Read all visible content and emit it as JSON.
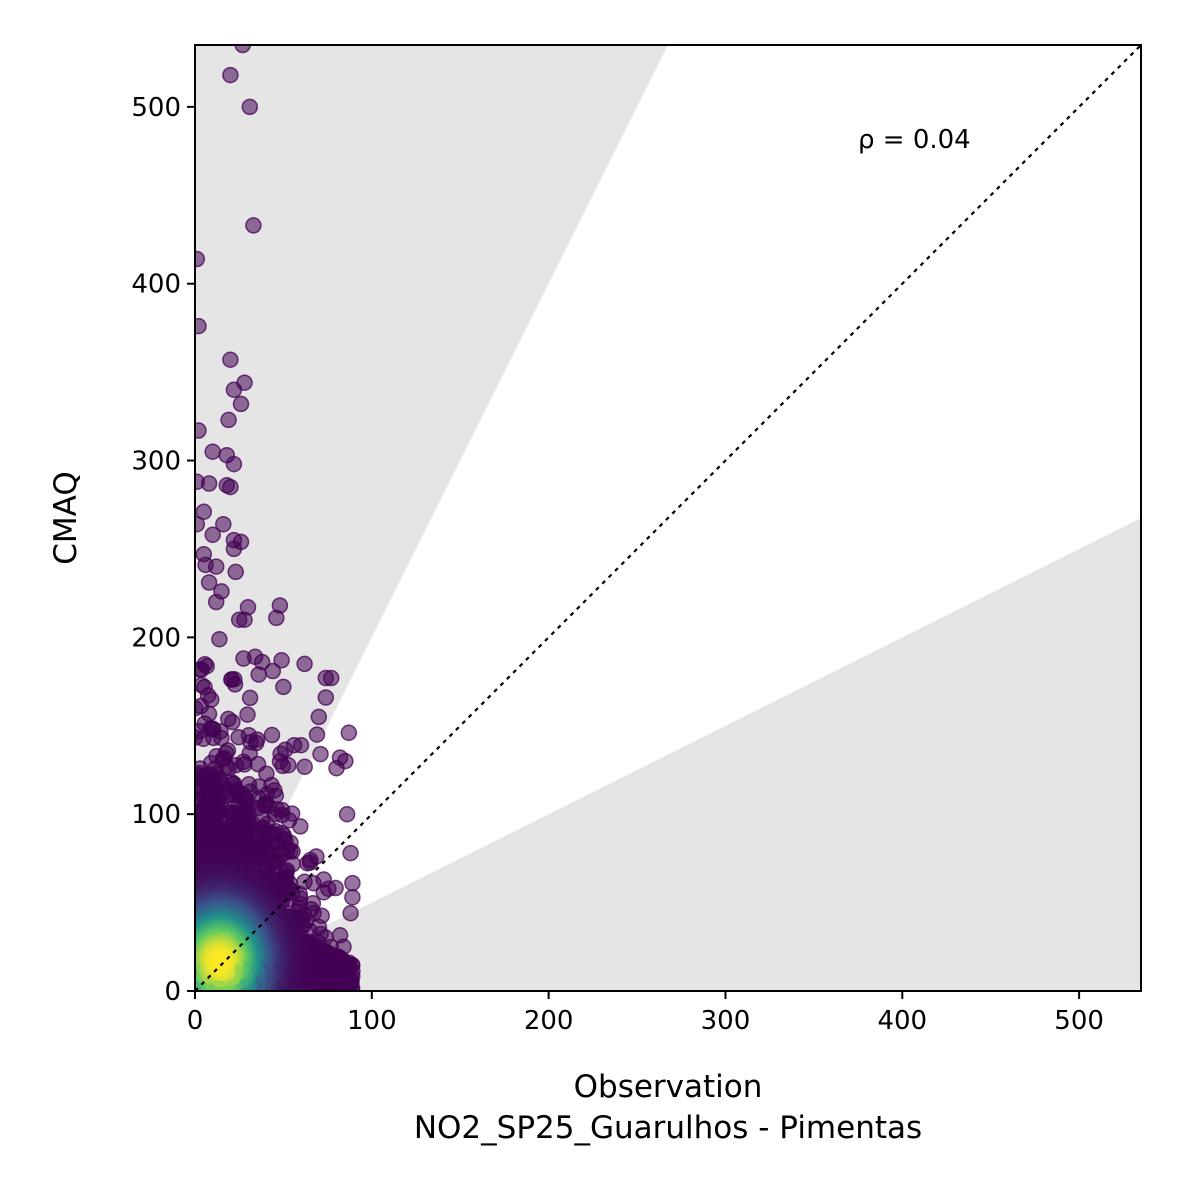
{
  "chart_data": {
    "type": "scatter",
    "title": "",
    "xlabel": "Observation",
    "xlabel_sub": "NO2_SP25_Guarulhos - Pimentas",
    "ylabel": "CMAQ",
    "xlim": [
      0,
      535
    ],
    "ylim": [
      0,
      535
    ],
    "xticks": [
      "0",
      "100",
      "200",
      "300",
      "400",
      "500"
    ],
    "yticks": [
      "0",
      "100",
      "200",
      "300",
      "400",
      "500"
    ],
    "annotation": "ρ = 0.04",
    "reference_line": "1:1 dotted",
    "shaded_regions": "grey wedges outside factor-of-2 band (y > 2x and y < 0.5x)",
    "colormap": "viridis (point density)",
    "grid": false,
    "outliers": [
      [
        27,
        535
      ],
      [
        20,
        518
      ],
      [
        31,
        500
      ],
      [
        33,
        433
      ],
      [
        1,
        414
      ],
      [
        2,
        376
      ],
      [
        20,
        357
      ],
      [
        28,
        344
      ],
      [
        22,
        340
      ],
      [
        26,
        332
      ],
      [
        19,
        323
      ],
      [
        2,
        317
      ],
      [
        10,
        305
      ],
      [
        18,
        303
      ],
      [
        22,
        298
      ],
      [
        1,
        288
      ],
      [
        8,
        287
      ],
      [
        18,
        286
      ],
      [
        20,
        285
      ],
      [
        5,
        271
      ],
      [
        16,
        264
      ],
      [
        1,
        264
      ],
      [
        22,
        255
      ],
      [
        26,
        254
      ],
      [
        10,
        258
      ],
      [
        22,
        250
      ],
      [
        5,
        247
      ],
      [
        6,
        241
      ],
      [
        12,
        240
      ],
      [
        23,
        237
      ],
      [
        48,
        218
      ],
      [
        30,
        217
      ],
      [
        46,
        211
      ],
      [
        25,
        210
      ],
      [
        62,
        185
      ],
      [
        49,
        187
      ],
      [
        74,
        177
      ],
      [
        77,
        177
      ],
      [
        34,
        189
      ],
      [
        38,
        186
      ],
      [
        50,
        172
      ],
      [
        74,
        166
      ],
      [
        70,
        155
      ],
      [
        87,
        146
      ],
      [
        69,
        145
      ],
      [
        56,
        139
      ],
      [
        60,
        139
      ],
      [
        71,
        134
      ],
      [
        82,
        132
      ],
      [
        85,
        130
      ],
      [
        80,
        126
      ],
      [
        86,
        100
      ],
      [
        88,
        78
      ],
      [
        89,
        61
      ],
      [
        89,
        53
      ],
      [
        88,
        44
      ],
      [
        87,
        9
      ],
      [
        89,
        11
      ],
      [
        80,
        15
      ],
      [
        84,
        25
      ],
      [
        44,
        181
      ],
      [
        36,
        179
      ],
      [
        28,
        210
      ],
      [
        15,
        226
      ],
      [
        12,
        220
      ],
      [
        8,
        231
      ]
    ]
  }
}
